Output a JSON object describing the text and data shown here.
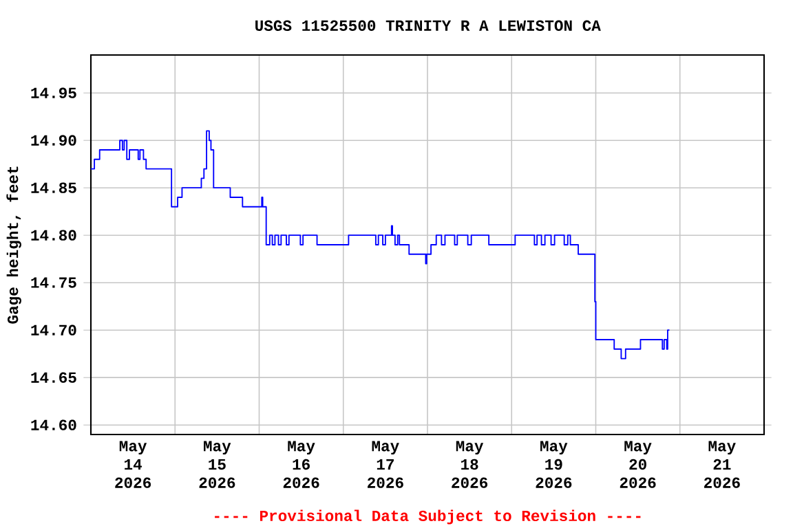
{
  "chart_data": {
    "type": "step",
    "title": "USGS 11525500 TRINITY R A LEWISTON CA",
    "ylabel": "Gage height, feet",
    "annotations": [
      "---- Provisional Data Subject to Revision ----"
    ],
    "x": [
      "2026-05-14T00:00",
      "2026-05-14T01:00",
      "2026-05-14T02:30",
      "2026-05-14T08:15",
      "2026-05-14T09:00",
      "2026-05-14T09:30",
      "2026-05-14T10:15",
      "2026-05-14T11:00",
      "2026-05-14T13:30",
      "2026-05-14T14:00",
      "2026-05-14T15:00",
      "2026-05-14T15:45",
      "2026-05-14T23:00",
      "2026-05-15T00:45",
      "2026-05-15T02:00",
      "2026-05-15T07:30",
      "2026-05-15T08:15",
      "2026-05-15T09:00",
      "2026-05-15T09:45",
      "2026-05-15T10:15",
      "2026-05-15T11:00",
      "2026-05-15T15:45",
      "2026-05-15T19:15",
      "2026-05-16T00:45",
      "2026-05-16T01:00",
      "2026-05-16T02:00",
      "2026-05-16T03:00",
      "2026-05-16T03:45",
      "2026-05-16T04:30",
      "2026-05-16T05:30",
      "2026-05-16T06:15",
      "2026-05-16T07:45",
      "2026-05-16T08:30",
      "2026-05-16T11:45",
      "2026-05-16T12:30",
      "2026-05-16T16:30",
      "2026-05-17T01:30",
      "2026-05-17T09:15",
      "2026-05-17T10:00",
      "2026-05-17T11:15",
      "2026-05-17T12:00",
      "2026-05-17T13:45",
      "2026-05-17T14:00",
      "2026-05-17T14:45",
      "2026-05-17T15:30",
      "2026-05-17T16:00",
      "2026-05-17T18:45",
      "2026-05-17T23:30",
      "2026-05-17T23:45",
      "2026-05-18T01:00",
      "2026-05-18T02:30",
      "2026-05-18T04:00",
      "2026-05-18T05:00",
      "2026-05-18T07:45",
      "2026-05-18T08:30",
      "2026-05-18T11:30",
      "2026-05-18T12:30",
      "2026-05-18T17:30",
      "2026-05-19T01:00",
      "2026-05-19T06:30",
      "2026-05-19T07:15",
      "2026-05-19T08:30",
      "2026-05-19T09:30",
      "2026-05-19T11:15",
      "2026-05-19T12:15",
      "2026-05-19T15:00",
      "2026-05-19T16:00",
      "2026-05-19T16:45",
      "2026-05-19T19:00",
      "2026-05-19T23:45",
      "2026-05-20T00:00",
      "2026-05-20T05:15",
      "2026-05-20T07:15",
      "2026-05-20T08:30",
      "2026-05-20T12:45",
      "2026-05-20T19:00",
      "2026-05-20T19:30",
      "2026-05-20T20:15",
      "2026-05-20T20:30",
      "2026-05-20T21:00"
    ],
    "series": [
      {
        "color": "#0000ff",
        "values": [
          14.87,
          14.88,
          14.89,
          14.9,
          14.89,
          14.9,
          14.88,
          14.89,
          14.88,
          14.89,
          14.88,
          14.87,
          14.83,
          14.84,
          14.85,
          14.86,
          14.87,
          14.91,
          14.9,
          14.89,
          14.85,
          14.84,
          14.83,
          14.84,
          14.83,
          14.79,
          14.8,
          14.79,
          14.8,
          14.79,
          14.8,
          14.79,
          14.8,
          14.79,
          14.8,
          14.79,
          14.8,
          14.79,
          14.8,
          14.79,
          14.8,
          14.81,
          14.8,
          14.79,
          14.8,
          14.79,
          14.78,
          14.77,
          14.78,
          14.79,
          14.8,
          14.79,
          14.8,
          14.79,
          14.8,
          14.79,
          14.8,
          14.79,
          14.8,
          14.79,
          14.8,
          14.79,
          14.8,
          14.79,
          14.8,
          14.79,
          14.8,
          14.79,
          14.78,
          14.73,
          14.69,
          14.68,
          14.67,
          14.68,
          14.69,
          14.68,
          14.69,
          14.68,
          14.7,
          14.7
        ]
      }
    ],
    "xlim": [
      "2026-05-14",
      "2026-05-22"
    ],
    "xticks": [
      {
        "value": "2026-05-14T12:00",
        "label": "May 14 2026"
      },
      {
        "value": "2026-05-15T12:00",
        "label": "May 15 2026"
      },
      {
        "value": "2026-05-16T12:00",
        "label": "May 16 2026"
      },
      {
        "value": "2026-05-17T12:00",
        "label": "May 17 2026"
      },
      {
        "value": "2026-05-18T12:00",
        "label": "May 18 2026"
      },
      {
        "value": "2026-05-19T12:00",
        "label": "May 19 2026"
      },
      {
        "value": "2026-05-20T12:00",
        "label": "May 20 2026"
      },
      {
        "value": "2026-05-21T12:00",
        "label": "May 21 2026"
      },
      {
        "value": "2026-05-15",
        "label": null
      },
      {
        "value": "2026-05-16",
        "label": null
      },
      {
        "value": "2026-05-17",
        "label": null
      },
      {
        "value": "2026-05-18",
        "label": null
      },
      {
        "value": "2026-05-19",
        "label": null
      },
      {
        "value": "2026-05-20",
        "label": null
      },
      {
        "value": "2026-05-21",
        "label": null
      }
    ],
    "ylim": [
      14.59,
      14.99
    ],
    "yticks": [
      {
        "value": 14.6,
        "label": "14.60"
      },
      {
        "value": 14.65,
        "label": "14.65"
      },
      {
        "value": 14.7,
        "label": "14.70"
      },
      {
        "value": 14.75,
        "label": "14.75"
      },
      {
        "value": 14.8,
        "label": "14.80"
      },
      {
        "value": 14.85,
        "label": "14.85"
      },
      {
        "value": 14.9,
        "label": "14.90"
      },
      {
        "value": 14.95,
        "label": "14.95"
      }
    ],
    "grid": true,
    "marker": "none",
    "line_style": "solid"
  }
}
